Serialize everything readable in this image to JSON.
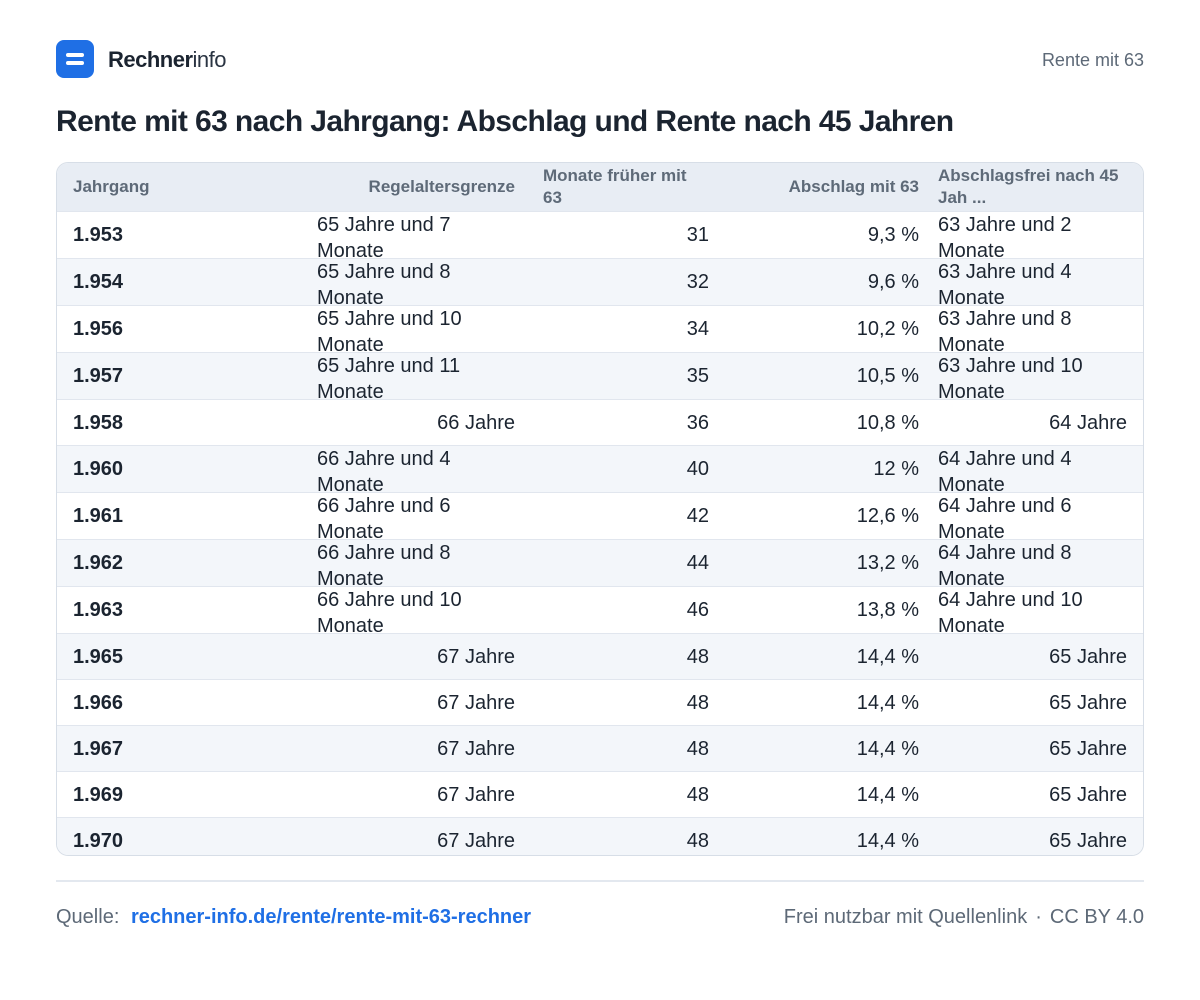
{
  "header": {
    "brand_strong": "Rechner",
    "brand_light": "info",
    "right_label": "Rente mit 63",
    "logo_icon": "equals-logo-icon",
    "accent_color": "#1f6fe5"
  },
  "title": "Rente mit 63 nach Jahrgang: Abschlag und Rente nach 45 Jahren",
  "table": {
    "columns": [
      "Jahrgang",
      "Regelaltersgrenze",
      "Monate früher mit 63",
      "Abschlag mit 63",
      "Abschlagsfrei nach 45 Jah ..."
    ],
    "rows": [
      {
        "jahrgang": "1.953",
        "regelaltersgrenze": "65 Jahre und 7 Monate",
        "monate": "31",
        "abschlag": "9,3 %",
        "abschlagsfrei": "63 Jahre und 2 Monate"
      },
      {
        "jahrgang": "1.954",
        "regelaltersgrenze": "65 Jahre und 8 Monate",
        "monate": "32",
        "abschlag": "9,6 %",
        "abschlagsfrei": "63 Jahre und 4 Monate"
      },
      {
        "jahrgang": "1.956",
        "regelaltersgrenze": "65 Jahre und 10 Monate",
        "monate": "34",
        "abschlag": "10,2 %",
        "abschlagsfrei": "63 Jahre und 8 Monate"
      },
      {
        "jahrgang": "1.957",
        "regelaltersgrenze": "65 Jahre und 11 Monate",
        "monate": "35",
        "abschlag": "10,5 %",
        "abschlagsfrei": "63 Jahre und 10 Monate"
      },
      {
        "jahrgang": "1.958",
        "regelaltersgrenze": "66 Jahre",
        "monate": "36",
        "abschlag": "10,8 %",
        "abschlagsfrei": "64 Jahre"
      },
      {
        "jahrgang": "1.960",
        "regelaltersgrenze": "66 Jahre und 4 Monate",
        "monate": "40",
        "abschlag": "12 %",
        "abschlagsfrei": "64 Jahre und 4 Monate"
      },
      {
        "jahrgang": "1.961",
        "regelaltersgrenze": "66 Jahre und 6 Monate",
        "monate": "42",
        "abschlag": "12,6 %",
        "abschlagsfrei": "64 Jahre und 6 Monate"
      },
      {
        "jahrgang": "1.962",
        "regelaltersgrenze": "66 Jahre und 8 Monate",
        "monate": "44",
        "abschlag": "13,2 %",
        "abschlagsfrei": "64 Jahre und 8 Monate"
      },
      {
        "jahrgang": "1.963",
        "regelaltersgrenze": "66 Jahre und 10 Monate",
        "monate": "46",
        "abschlag": "13,8 %",
        "abschlagsfrei": "64 Jahre und 10 Monate"
      },
      {
        "jahrgang": "1.965",
        "regelaltersgrenze": "67 Jahre",
        "monate": "48",
        "abschlag": "14,4 %",
        "abschlagsfrei": "65 Jahre"
      },
      {
        "jahrgang": "1.966",
        "regelaltersgrenze": "67 Jahre",
        "monate": "48",
        "abschlag": "14,4 %",
        "abschlagsfrei": "65 Jahre"
      },
      {
        "jahrgang": "1.967",
        "regelaltersgrenze": "67 Jahre",
        "monate": "48",
        "abschlag": "14,4 %",
        "abschlagsfrei": "65 Jahre"
      },
      {
        "jahrgang": "1.969",
        "regelaltersgrenze": "67 Jahre",
        "monate": "48",
        "abschlag": "14,4 %",
        "abschlagsfrei": "65 Jahre"
      },
      {
        "jahrgang": "1.970",
        "regelaltersgrenze": "67 Jahre",
        "monate": "48",
        "abschlag": "14,4 %",
        "abschlagsfrei": "65 Jahre"
      }
    ]
  },
  "footer": {
    "source_label": "Quelle:",
    "source_link": "rechner-info.de/rente/rente-mit-63-rechner",
    "license_text": "Frei nutzbar mit Quellenlink",
    "separator": "·",
    "license": "CC BY 4.0"
  }
}
